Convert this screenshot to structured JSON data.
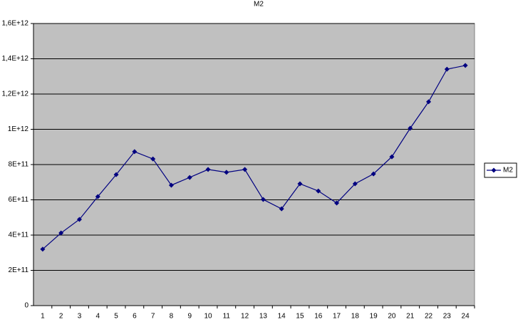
{
  "chart_data": {
    "type": "line",
    "title": "M2",
    "categories": [
      "1",
      "2",
      "3",
      "4",
      "5",
      "6",
      "7",
      "8",
      "9",
      "10",
      "11",
      "12",
      "13",
      "14",
      "15",
      "16",
      "17",
      "18",
      "19",
      "20",
      "21",
      "22",
      "23",
      "24"
    ],
    "series": [
      {
        "name": "M2",
        "color": "#000080",
        "values": [
          320000000000,
          412000000000,
          489000000000,
          618000000000,
          743000000000,
          873000000000,
          832000000000,
          683000000000,
          727000000000,
          772000000000,
          756000000000,
          772000000000,
          602000000000,
          549000000000,
          691000000000,
          650000000000,
          582000000000,
          691000000000,
          747000000000,
          844000000000,
          1006000000000,
          1156000000000,
          1341000000000,
          1362000000000
        ]
      }
    ],
    "ylim": [
      0,
      1600000000000
    ],
    "yticks": [
      0,
      {
        "value": 200000000000,
        "label": "2E+11"
      },
      {
        "value": 400000000000,
        "label": "4E+11"
      },
      {
        "value": 600000000000,
        "label": "6E+11"
      },
      {
        "value": 800000000000,
        "label": "8E+11"
      },
      {
        "value": 1000000000000,
        "label": "1E+12"
      },
      {
        "value": 1200000000000,
        "label": "1,2E+12"
      },
      {
        "value": 1400000000000,
        "label": "1,4E+12"
      },
      {
        "value": 1600000000000,
        "label": "1,6E+12"
      }
    ],
    "grid": true,
    "legend": "right"
  }
}
